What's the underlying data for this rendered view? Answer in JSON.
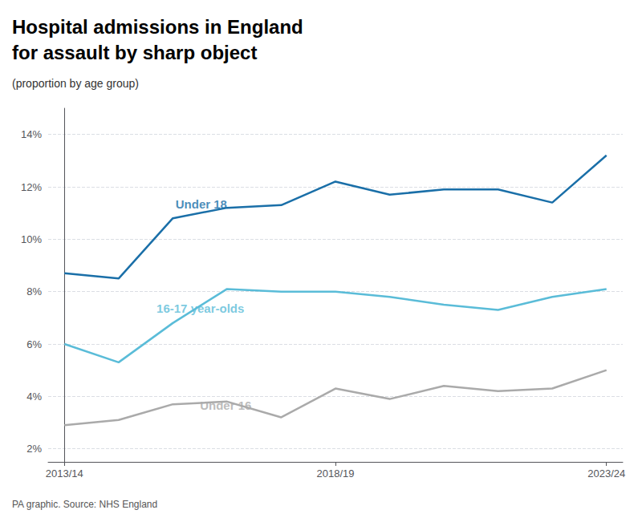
{
  "chart_data": {
    "type": "line",
    "title": "Hospital admissions in England\nfor assault by sharp object",
    "subtitle": "(proportion by age group)",
    "source": "PA graphic. Source: NHS England",
    "x": [
      0,
      1,
      2,
      3,
      4,
      5,
      6,
      7,
      8,
      9,
      10
    ],
    "xlim": [
      -0.3,
      10.3
    ],
    "xticks": [
      {
        "value": 0,
        "label": "2013/14"
      },
      {
        "value": 5,
        "label": "2018/19"
      },
      {
        "value": 10,
        "label": "2023/24"
      }
    ],
    "ylim": [
      1.5,
      15.0
    ],
    "yticks": [
      {
        "value": 2,
        "label": "2%"
      },
      {
        "value": 4,
        "label": "4%"
      },
      {
        "value": 6,
        "label": "6%"
      },
      {
        "value": 8,
        "label": "8%"
      },
      {
        "value": 10,
        "label": "10%"
      },
      {
        "value": 12,
        "label": "12%"
      },
      {
        "value": 14,
        "label": "14%"
      }
    ],
    "grid": true,
    "series": [
      {
        "name": "Under 18",
        "color": "#1a6fa8",
        "values": [
          8.7,
          8.5,
          10.8,
          11.2,
          11.3,
          12.2,
          11.7,
          11.9,
          11.9,
          11.4,
          13.2
        ]
      },
      {
        "name": "16-17 year-olds",
        "color": "#5abcd8",
        "values": [
          6.0,
          5.3,
          6.8,
          8.1,
          8.0,
          8.0,
          7.8,
          7.5,
          7.3,
          7.8,
          8.1
        ]
      },
      {
        "name": "Under 16",
        "color": "#aaaaaa",
        "values": [
          2.9,
          3.1,
          3.7,
          3.8,
          3.2,
          4.3,
          3.9,
          4.4,
          4.2,
          4.3,
          5.0
        ]
      }
    ],
    "annotations": [
      {
        "text": "Under 18",
        "x": 2.05,
        "y": 11.35,
        "color": "#1a6fa8"
      },
      {
        "text": "16-17 year-olds",
        "x": 1.7,
        "y": 7.35,
        "color": "#5abcd8"
      },
      {
        "text": "Under 16",
        "x": 2.5,
        "y": 3.65,
        "color": "#aaaaaa"
      }
    ]
  }
}
